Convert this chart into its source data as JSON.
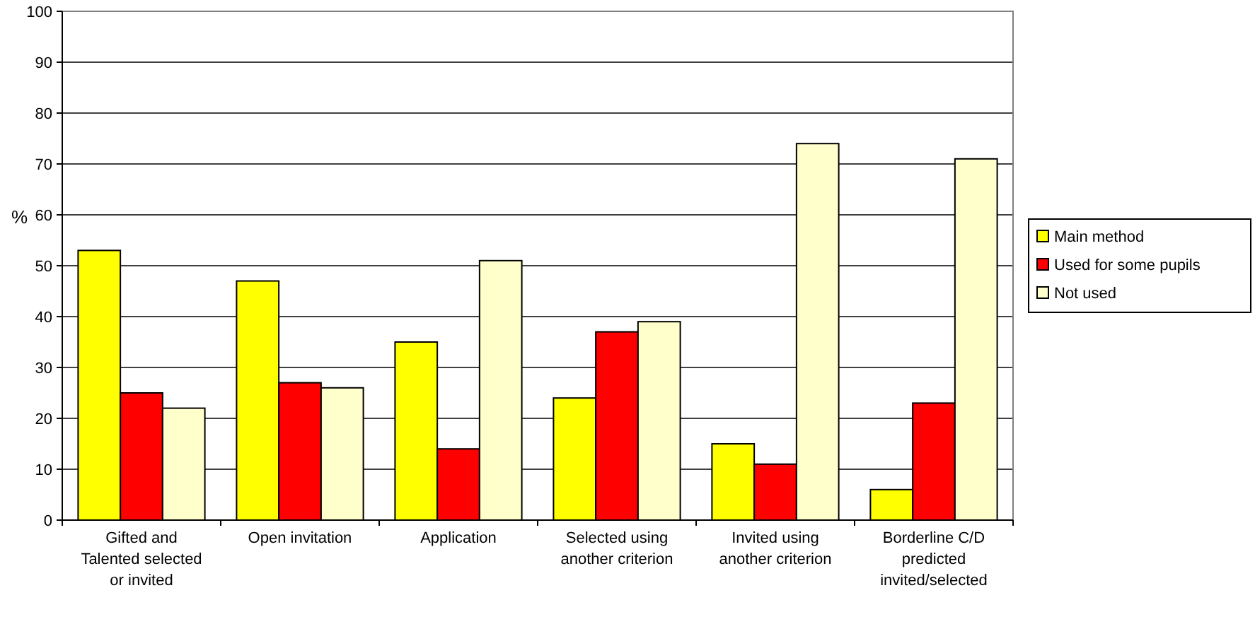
{
  "chart_data": {
    "type": "bar",
    "ylabel": "%",
    "categories": [
      "Gifted and Talented selected or invited",
      "Open invitation",
      "Application",
      "Selected using another criterion",
      "Invited using another criterion",
      "Borderline C/D predicted invited/selected"
    ],
    "series": [
      {
        "name": "Main method",
        "color": "#ffff00",
        "values": [
          53,
          47,
          35,
          24,
          15,
          6
        ]
      },
      {
        "name": "Used for some pupils",
        "color": "#ff0000",
        "values": [
          25,
          27,
          14,
          37,
          11,
          23
        ]
      },
      {
        "name": "Not used",
        "color": "#ffffcc",
        "values": [
          22,
          26,
          51,
          39,
          74,
          71
        ]
      }
    ],
    "ylim": [
      0,
      100
    ],
    "yticks": [
      0,
      10,
      20,
      30,
      40,
      50,
      60,
      70,
      80,
      90,
      100
    ],
    "grid": "y",
    "legend": "right"
  }
}
